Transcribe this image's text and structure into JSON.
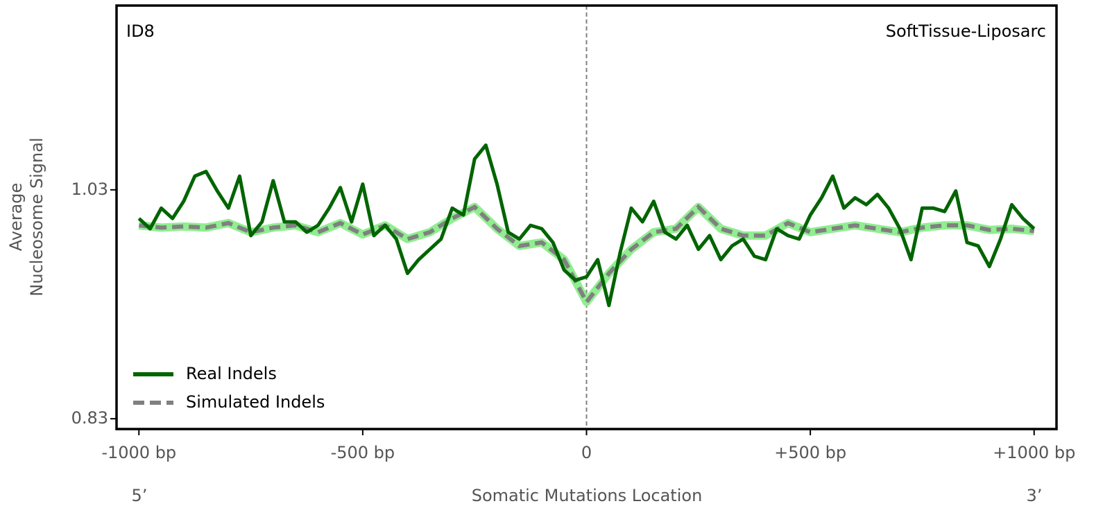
{
  "chart_data": {
    "type": "line",
    "annotations": [
      "ID8",
      "SoftTissue-Liposarc"
    ],
    "xlabel": "Somatic Mutations Location",
    "ylabel": [
      "Average",
      "Nucleosome Signal"
    ],
    "end_labels": [
      "5’",
      "3’"
    ],
    "xlim": [
      -1050,
      1050
    ],
    "ylim": [
      0.821,
      1.191
    ],
    "xticks": [
      {
        "value": -1000,
        "label": "-1000 bp"
      },
      {
        "value": -500,
        "label": "-500 bp"
      },
      0,
      {
        "value": 500,
        "label": "+500 bp"
      },
      {
        "value": 1000,
        "label": "+1000 bp"
      }
    ],
    "yticks": [
      0.83,
      1.03
    ],
    "vline": 0,
    "legend": "lower left",
    "band_color": "#90ee90",
    "series": [
      {
        "name": "Real Indels",
        "color": "#006400",
        "style": "solid",
        "x": [
          -1000,
          -975,
          -950,
          -925,
          -900,
          -875,
          -850,
          -825,
          -800,
          -775,
          -750,
          -725,
          -700,
          -675,
          -650,
          -625,
          -600,
          -575,
          -550,
          -525,
          -500,
          -475,
          -450,
          -425,
          -400,
          -375,
          -350,
          -325,
          -300,
          -275,
          -250,
          -225,
          -200,
          -175,
          -150,
          -125,
          -100,
          -75,
          -50,
          -25,
          0,
          25,
          50,
          75,
          100,
          125,
          150,
          175,
          200,
          225,
          250,
          275,
          300,
          325,
          350,
          375,
          400,
          425,
          450,
          475,
          500,
          525,
          550,
          575,
          600,
          625,
          650,
          675,
          700,
          725,
          750,
          775,
          800,
          825,
          850,
          875,
          900,
          925,
          950,
          975,
          1000
        ],
        "values": [
          1.005,
          0.996,
          1.014,
          1.005,
          1.02,
          1.042,
          1.046,
          1.029,
          1.014,
          1.042,
          0.99,
          1.002,
          1.038,
          1.002,
          1.002,
          0.993,
          0.999,
          1.014,
          1.032,
          1.002,
          1.035,
          0.99,
          0.999,
          0.987,
          0.957,
          0.969,
          0.978,
          0.987,
          1.014,
          1.008,
          1.057,
          1.069,
          1.035,
          0.993,
          0.987,
          0.999,
          0.996,
          0.984,
          0.96,
          0.951,
          0.954,
          0.969,
          0.929,
          0.975,
          1.014,
          1.002,
          1.02,
          0.993,
          0.987,
          0.999,
          0.978,
          0.99,
          0.969,
          0.981,
          0.987,
          0.972,
          0.969,
          0.996,
          0.99,
          0.987,
          1.008,
          1.023,
          1.042,
          1.014,
          1.023,
          1.017,
          1.026,
          1.014,
          0.996,
          0.969,
          1.014,
          1.014,
          1.011,
          1.029,
          0.984,
          0.981,
          0.963,
          0.987,
          1.017,
          1.005,
          0.996
        ]
      },
      {
        "name": "Simulated Indels",
        "color": "#808080",
        "style": "dashed",
        "x": [
          -1000,
          -950,
          -900,
          -850,
          -800,
          -750,
          -700,
          -650,
          -600,
          -550,
          -500,
          -450,
          -400,
          -350,
          -300,
          -250,
          -200,
          -150,
          -100,
          -50,
          0,
          50,
          100,
          150,
          200,
          250,
          300,
          350,
          400,
          450,
          500,
          550,
          600,
          650,
          700,
          750,
          800,
          850,
          900,
          950,
          1000
        ],
        "values": [
          0.999,
          0.997,
          0.998,
          0.997,
          1.001,
          0.993,
          0.997,
          0.999,
          0.993,
          1.001,
          0.991,
          0.999,
          0.987,
          0.993,
          1.005,
          1.015,
          0.996,
          0.981,
          0.984,
          0.969,
          0.932,
          0.957,
          0.978,
          0.993,
          0.996,
          1.015,
          0.996,
          0.99,
          0.99,
          1.001,
          0.993,
          0.996,
          0.999,
          0.996,
          0.993,
          0.997,
          0.999,
          0.999,
          0.995,
          0.996,
          0.994
        ]
      }
    ]
  }
}
